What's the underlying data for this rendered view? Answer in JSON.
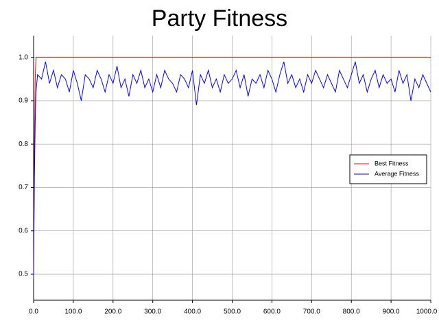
{
  "chart_data": {
    "type": "line",
    "title": "Party Fitness",
    "x": [
      0,
      2,
      4,
      6,
      10,
      20,
      30,
      40,
      50,
      60,
      70,
      80,
      90,
      100,
      110,
      120,
      130,
      140,
      150,
      160,
      170,
      180,
      190,
      200,
      210,
      220,
      230,
      240,
      250,
      260,
      270,
      280,
      290,
      300,
      310,
      320,
      330,
      340,
      350,
      360,
      370,
      380,
      390,
      400,
      410,
      420,
      430,
      440,
      450,
      460,
      470,
      480,
      490,
      500,
      510,
      520,
      530,
      540,
      550,
      560,
      570,
      580,
      590,
      600,
      610,
      620,
      630,
      640,
      650,
      660,
      670,
      680,
      690,
      700,
      710,
      720,
      730,
      740,
      750,
      760,
      770,
      780,
      790,
      800,
      810,
      820,
      830,
      840,
      850,
      860,
      870,
      880,
      890,
      900,
      910,
      920,
      930,
      940,
      950,
      960,
      970,
      980,
      990,
      1000
    ],
    "series": [
      {
        "name": "Best Fitness",
        "color": "#ff0000",
        "values": [
          0.49,
          0.8,
          0.95,
          1.0,
          1.0,
          1.0,
          1.0,
          1.0,
          1.0,
          1.0,
          1.0,
          1.0,
          1.0,
          1.0,
          1.0,
          1.0,
          1.0,
          1.0,
          1.0,
          1.0,
          1.0,
          1.0,
          1.0,
          1.0,
          1.0,
          1.0,
          1.0,
          1.0,
          1.0,
          1.0,
          1.0,
          1.0,
          1.0,
          1.0,
          1.0,
          1.0,
          1.0,
          1.0,
          1.0,
          1.0,
          1.0,
          1.0,
          1.0,
          1.0,
          1.0,
          1.0,
          1.0,
          1.0,
          1.0,
          1.0,
          1.0,
          1.0,
          1.0,
          1.0,
          1.0,
          1.0,
          1.0,
          1.0,
          1.0,
          1.0,
          1.0,
          1.0,
          1.0,
          1.0,
          1.0,
          1.0,
          1.0,
          1.0,
          1.0,
          1.0,
          1.0,
          1.0,
          1.0,
          1.0,
          1.0,
          1.0,
          1.0,
          1.0,
          1.0,
          1.0,
          1.0,
          1.0,
          1.0,
          1.0,
          1.0,
          1.0,
          1.0,
          1.0,
          1.0,
          1.0,
          1.0,
          1.0,
          1.0,
          1.0,
          1.0,
          1.0,
          1.0,
          1.0,
          1.0,
          1.0,
          1.0,
          1.0,
          1.0,
          1.0
        ]
      },
      {
        "name": "Average Fitness",
        "color": "#0000ff",
        "values": [
          0.49,
          0.72,
          0.85,
          0.92,
          0.96,
          0.95,
          0.99,
          0.94,
          0.97,
          0.93,
          0.96,
          0.95,
          0.92,
          0.97,
          0.94,
          0.9,
          0.96,
          0.95,
          0.93,
          0.97,
          0.95,
          0.92,
          0.96,
          0.94,
          0.98,
          0.93,
          0.95,
          0.91,
          0.96,
          0.94,
          0.97,
          0.93,
          0.95,
          0.92,
          0.96,
          0.93,
          0.97,
          0.95,
          0.94,
          0.92,
          0.96,
          0.95,
          0.93,
          0.97,
          0.89,
          0.96,
          0.94,
          0.97,
          0.93,
          0.95,
          0.92,
          0.96,
          0.94,
          0.95,
          0.97,
          0.93,
          0.96,
          0.91,
          0.95,
          0.94,
          0.96,
          0.93,
          0.97,
          0.95,
          0.92,
          0.96,
          0.99,
          0.94,
          0.96,
          0.93,
          0.95,
          0.92,
          0.96,
          0.94,
          0.97,
          0.95,
          0.93,
          0.96,
          0.94,
          0.92,
          0.97,
          0.95,
          0.93,
          0.96,
          0.99,
          0.94,
          0.96,
          0.92,
          0.95,
          0.97,
          0.93,
          0.96,
          0.94,
          0.95,
          0.92,
          0.97,
          0.94,
          0.96,
          0.9,
          0.95,
          0.93,
          0.96,
          0.94,
          0.92
        ]
      }
    ],
    "xlim": [
      0,
      1000
    ],
    "xticks": [
      {
        "value": 0,
        "label": "0.0"
      },
      {
        "value": 100,
        "label": "100.0"
      },
      {
        "value": 200,
        "label": "200.0"
      },
      {
        "value": 300,
        "label": "300.0"
      },
      {
        "value": 400,
        "label": "400.0"
      },
      {
        "value": 500,
        "label": "500.0"
      },
      {
        "value": 600,
        "label": "600.0"
      },
      {
        "value": 700,
        "label": "700.0"
      },
      {
        "value": 800,
        "label": "800.0"
      },
      {
        "value": 900,
        "label": "900.0"
      },
      {
        "value": 1000,
        "label": "1000.0"
      }
    ],
    "ylim": [
      0.44,
      1.05
    ],
    "yticks": [
      0.5,
      0.6,
      0.7,
      0.8,
      0.9,
      {
        "value": 1.0,
        "label": "1.0"
      }
    ],
    "grid": true,
    "legend": "right"
  }
}
